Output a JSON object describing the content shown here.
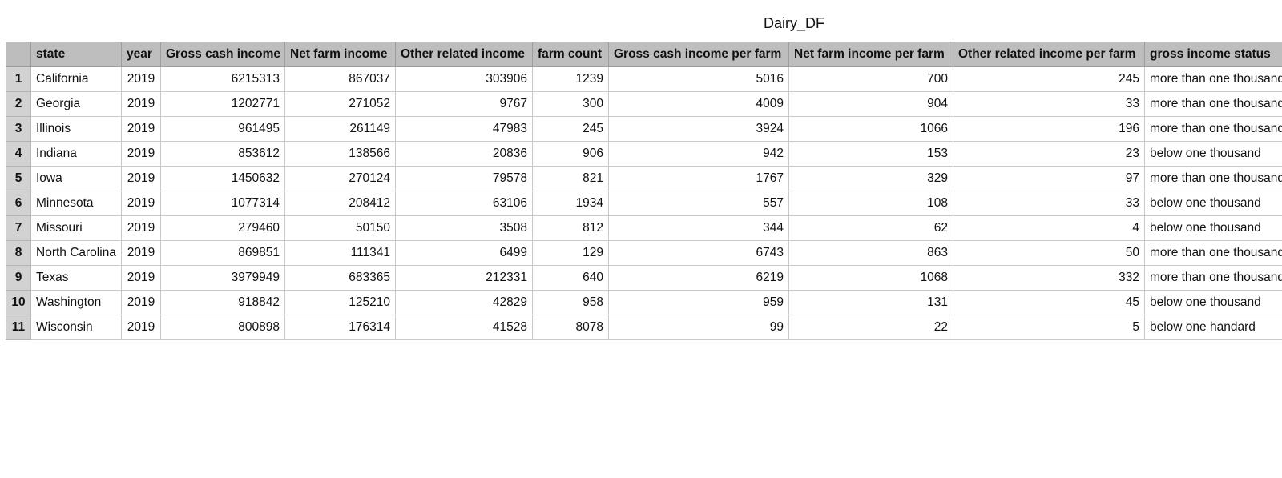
{
  "sheet": {
    "title": "Dairy_DF"
  },
  "table": {
    "columns": [
      "state",
      "year",
      "Gross cash income",
      "Net farm income",
      "Other related income",
      "farm count",
      "Gross cash income per farm",
      "Net farm income per farm",
      "Other related income per farm",
      "gross income status"
    ],
    "rows": [
      [
        "1",
        "California",
        "2019",
        "6215313",
        "867037",
        "303906",
        "1239",
        "5016",
        "700",
        "245",
        "more than one thousand"
      ],
      [
        "2",
        "Georgia",
        "2019",
        "1202771",
        "271052",
        "9767",
        "300",
        "4009",
        "904",
        "33",
        "more than one thousand"
      ],
      [
        "3",
        "Illinois",
        "2019",
        "961495",
        "261149",
        "47983",
        "245",
        "3924",
        "1066",
        "196",
        "more than one thousand"
      ],
      [
        "4",
        "Indiana",
        "2019",
        "853612",
        "138566",
        "20836",
        "906",
        "942",
        "153",
        "23",
        "below one thousand"
      ],
      [
        "5",
        "Iowa",
        "2019",
        "1450632",
        "270124",
        "79578",
        "821",
        "1767",
        "329",
        "97",
        "more than one thousand"
      ],
      [
        "6",
        "Minnesota",
        "2019",
        "1077314",
        "208412",
        "63106",
        "1934",
        "557",
        "108",
        "33",
        "below one thousand"
      ],
      [
        "7",
        "Missouri",
        "2019",
        "279460",
        "50150",
        "3508",
        "812",
        "344",
        "62",
        "4",
        "below one thousand"
      ],
      [
        "8",
        "North Carolina",
        "2019",
        "869851",
        "111341",
        "6499",
        "129",
        "6743",
        "863",
        "50",
        "more than one thousand"
      ],
      [
        "9",
        "Texas",
        "2019",
        "3979949",
        "683365",
        "212331",
        "640",
        "6219",
        "1068",
        "332",
        "more than one thousand"
      ],
      [
        "10",
        "Washington",
        "2019",
        "918842",
        "125210",
        "42829",
        "958",
        "959",
        "131",
        "45",
        "below one thousand"
      ],
      [
        "11",
        "Wisconsin",
        "2019",
        "800898",
        "176314",
        "41528",
        "8078",
        "99",
        "22",
        "5",
        "below one handard"
      ]
    ]
  }
}
